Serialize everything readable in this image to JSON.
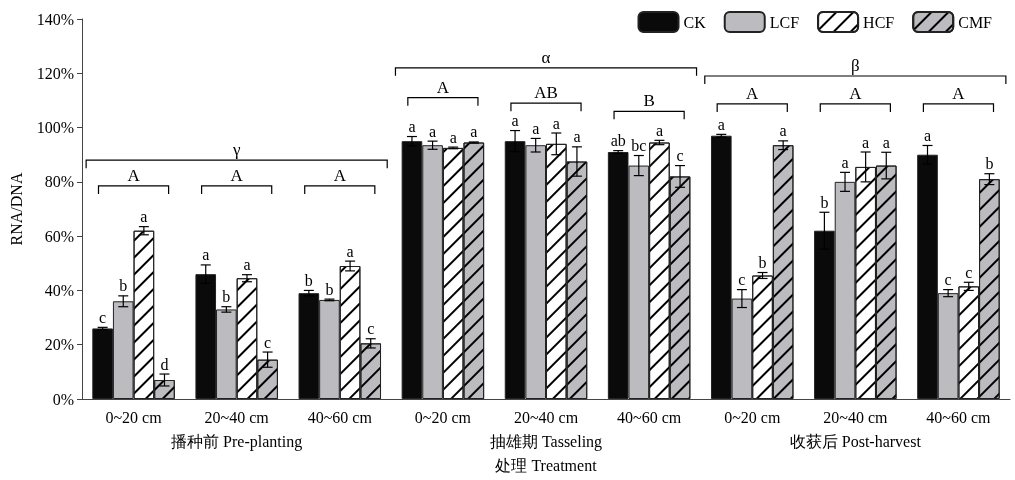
{
  "chart_data": {
    "type": "bar",
    "xlabel": "处理 Treatment",
    "ylabel": "RNA/DNA",
    "categories": [
      "0~20 cm",
      "20~40 cm",
      "40~60 cm",
      "0~20 cm",
      "20~40 cm",
      "40~60 cm",
      "0~20 cm",
      "20~40 cm",
      "40~60 cm"
    ],
    "series": [
      {
        "name": "CK",
        "color": "#0a0a0a",
        "values": [
          26,
          46,
          39,
          95,
          95,
          91,
          97,
          62,
          90
        ],
        "errors": [
          0.4,
          3.4,
          1,
          1.7,
          3.9,
          0.5,
          0.5,
          6.8,
          3.4
        ],
        "value_labels": [
          "c",
          "a",
          "b",
          "a",
          "a",
          "ab",
          "a",
          "b",
          "a"
        ]
      },
      {
        "name": "LCF",
        "color": "#bcbcc0",
        "values": [
          36,
          33,
          36.5,
          93.5,
          93.5,
          86,
          37,
          80,
          39
        ],
        "errors": [
          2,
          1,
          0.3,
          1.5,
          2.5,
          3.7,
          3.3,
          3.5,
          1.3
        ],
        "value_labels": [
          "b",
          "b",
          "b",
          "a",
          "a",
          "bc",
          "c",
          "a",
          "c"
        ]
      },
      {
        "name": "HCF",
        "color": "#ffffff",
        "values": [
          62,
          44.5,
          49,
          92.5,
          94,
          94.5,
          45.5,
          85.5,
          41.5
        ],
        "errors": [
          1.5,
          1.3,
          1.8,
          0.3,
          4,
          0.8,
          1.1,
          5.5,
          1.5
        ],
        "value_labels": [
          "a",
          "a",
          "a",
          "a",
          "a",
          "a",
          "b",
          "a",
          "c"
        ]
      },
      {
        "name": "CMF",
        "color": "#bcbcc0",
        "values": [
          7,
          14.5,
          20.5,
          94.5,
          87.5,
          82,
          93.5,
          86,
          81
        ],
        "errors": [
          2.2,
          2.8,
          1.7,
          0.2,
          5.4,
          4,
          1.6,
          4.9,
          2
        ],
        "value_labels": [
          "d",
          "c",
          "c",
          "a",
          "a",
          "c",
          "a",
          "a",
          "b"
        ]
      }
    ],
    "ylim": [
      0,
      140
    ],
    "yticks": [
      {
        "value": 0,
        "label": "0%"
      },
      {
        "value": 20,
        "label": "20%"
      },
      {
        "value": 40,
        "label": "40%"
      },
      {
        "value": 60,
        "label": "60%"
      },
      {
        "value": 80,
        "label": "80%"
      },
      {
        "value": 100,
        "label": "100%"
      },
      {
        "value": 120,
        "label": "120%"
      },
      {
        "value": 140,
        "label": "140%"
      }
    ],
    "grid": false,
    "legend": "top right",
    "annotations": [
      "γ",
      "A",
      "A",
      "A",
      "α",
      "A",
      "AB",
      "B",
      "β",
      "A",
      "A",
      "A",
      "播种前 Pre-planting",
      "抽雄期 Tasseling",
      "收获后 Post-harvest"
    ]
  }
}
